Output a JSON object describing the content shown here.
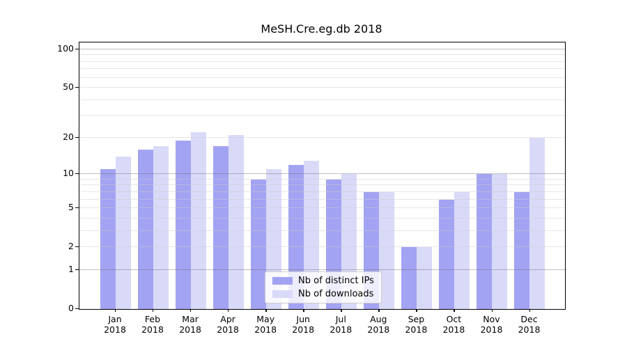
{
  "title": "MeSH.Cre.eg.db 2018",
  "colors": {
    "ips_bar": "#a3a3f3",
    "downloads_bar": "#d9d9f8",
    "grid_major": "#c2c2c2",
    "grid_minor": "#e6e6e6",
    "spine": "#000000",
    "legend_border": "#cccccc"
  },
  "chart_data": {
    "type": "bar",
    "title": "MeSH.Cre.eg.db 2018",
    "xlabel": "",
    "ylabel": "",
    "year": "2018",
    "categories": [
      "Jan",
      "Feb",
      "Mar",
      "Apr",
      "May",
      "Jun",
      "Jul",
      "Aug",
      "Sep",
      "Oct",
      "Nov",
      "Dec"
    ],
    "series": [
      {
        "name": "Nb of distinct IPs",
        "color": "#a3a3f3",
        "values": [
          11,
          16,
          19,
          17,
          9,
          12,
          9,
          7,
          2,
          6,
          10,
          7
        ]
      },
      {
        "name": "Nb of downloads",
        "color": "#d9d9f8",
        "values": [
          14,
          17,
          22,
          21,
          11,
          13,
          10,
          7,
          2,
          7,
          10,
          20
        ]
      }
    ],
    "yscale": "log1p",
    "ylim": [
      0,
      110
    ],
    "yticks": [
      0,
      1,
      2,
      5,
      10,
      20,
      50,
      100
    ],
    "grid_major_values": [
      1,
      10,
      100
    ],
    "grid_minor_values": [
      2,
      3,
      4,
      5,
      6,
      7,
      8,
      9,
      20,
      30,
      40,
      50,
      60,
      70,
      80,
      90
    ],
    "grid": "on",
    "legend_position": "inside-bottom-center"
  }
}
